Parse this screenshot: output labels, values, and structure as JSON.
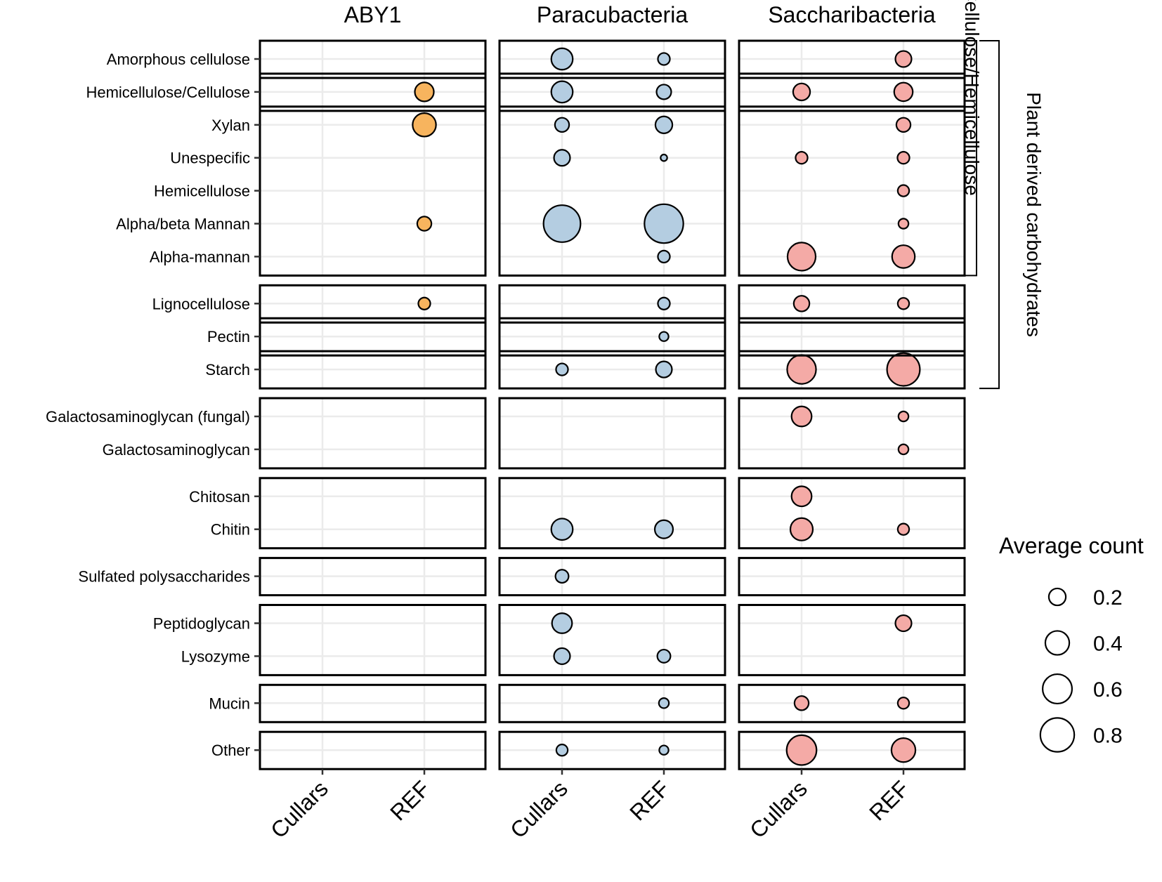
{
  "chart_data": {
    "type": "bubble",
    "facets": [
      "ABY1",
      "Paracubacteria",
      "Saccharibacteria"
    ],
    "x_categories": [
      "Cullars",
      "REF"
    ],
    "rows": [
      "Amorphous cellulose",
      "Hemicellulose/Cellulose",
      "Xylan",
      "Unespecific",
      "Hemicellulose",
      "Alpha/beta Mannan",
      "Alpha-mannan",
      "Lignocellulose",
      "Pectin",
      "Starch",
      "Galactosaminoglycan (fungal)",
      "Galactosaminoglycan",
      "Chitosan",
      "Chitin",
      "Sulfated polysaccharides",
      "Peptidoglycan",
      "Lysozyme",
      "Mucin",
      "Other"
    ],
    "row_groups": [
      [
        "Amorphous cellulose"
      ],
      [
        "Hemicellulose/Cellulose"
      ],
      [
        "Xylan",
        "Unespecific",
        "Hemicellulose",
        "Alpha/beta Mannan",
        "Alpha-mannan"
      ],
      [
        "Lignocellulose"
      ],
      [
        "Pectin"
      ],
      [
        "Starch"
      ],
      [
        "Galactosaminoglycan (fungal)",
        "Galactosaminoglycan"
      ],
      [
        "Chitosan",
        "Chitin"
      ],
      [
        "Sulfated polysaccharides"
      ],
      [
        "Peptidoglycan",
        "Lysozyme"
      ],
      [
        "Mucin"
      ],
      [
        "Other"
      ]
    ],
    "section_gaps_after": [
      7,
      10,
      12,
      14,
      15,
      17,
      18
    ],
    "brackets": [
      {
        "label": "Cellulose/Hemicellulose",
        "from": 0,
        "to": 6
      },
      {
        "label": "Plant derived carbohydrates",
        "from": 0,
        "to": 9
      }
    ],
    "colors": {
      "ABY1": "#F7B45E",
      "Paracubacteria": "#B4CDE1",
      "Saccharibacteria": "#F4AAA6"
    },
    "points": [
      {
        "facet": "ABY1",
        "x": "REF",
        "y": "Hemicellulose/Cellulose",
        "value": 0.25
      },
      {
        "facet": "ABY1",
        "x": "REF",
        "y": "Xylan",
        "value": 0.38
      },
      {
        "facet": "ABY1",
        "x": "REF",
        "y": "Alpha/beta Mannan",
        "value": 0.14
      },
      {
        "facet": "ABY1",
        "x": "REF",
        "y": "Lignocellulose",
        "value": 0.1
      },
      {
        "facet": "Paracubacteria",
        "x": "Cullars",
        "y": "Amorphous cellulose",
        "value": 0.32
      },
      {
        "facet": "Paracubacteria",
        "x": "REF",
        "y": "Amorphous cellulose",
        "value": 0.1
      },
      {
        "facet": "Paracubacteria",
        "x": "Cullars",
        "y": "Hemicellulose/Cellulose",
        "value": 0.32
      },
      {
        "facet": "Paracubacteria",
        "x": "REF",
        "y": "Hemicellulose/Cellulose",
        "value": 0.15
      },
      {
        "facet": "Paracubacteria",
        "x": "Cullars",
        "y": "Xylan",
        "value": 0.14
      },
      {
        "facet": "Paracubacteria",
        "x": "REF",
        "y": "Xylan",
        "value": 0.2
      },
      {
        "facet": "Paracubacteria",
        "x": "Cullars",
        "y": "Unespecific",
        "value": 0.18
      },
      {
        "facet": "Paracubacteria",
        "x": "REF",
        "y": "Unespecific",
        "value": 0.03
      },
      {
        "facet": "Paracubacteria",
        "x": "Cullars",
        "y": "Alpha/beta Mannan",
        "value": 0.95
      },
      {
        "facet": "Paracubacteria",
        "x": "REF",
        "y": "Alpha/beta Mannan",
        "value": 1.05
      },
      {
        "facet": "Paracubacteria",
        "x": "REF",
        "y": "Alpha-mannan",
        "value": 0.1
      },
      {
        "facet": "Paracubacteria",
        "x": "REF",
        "y": "Lignocellulose",
        "value": 0.1
      },
      {
        "facet": "Paracubacteria",
        "x": "REF",
        "y": "Pectin",
        "value": 0.06
      },
      {
        "facet": "Paracubacteria",
        "x": "Cullars",
        "y": "Starch",
        "value": 0.1
      },
      {
        "facet": "Paracubacteria",
        "x": "REF",
        "y": "Starch",
        "value": 0.18
      },
      {
        "facet": "Paracubacteria",
        "x": "Cullars",
        "y": "Chitin",
        "value": 0.32
      },
      {
        "facet": "Paracubacteria",
        "x": "REF",
        "y": "Chitin",
        "value": 0.23
      },
      {
        "facet": "Paracubacteria",
        "x": "Cullars",
        "y": "Sulfated polysaccharides",
        "value": 0.12
      },
      {
        "facet": "Paracubacteria",
        "x": "Cullars",
        "y": "Peptidoglycan",
        "value": 0.28
      },
      {
        "facet": "Paracubacteria",
        "x": "Cullars",
        "y": "Lysozyme",
        "value": 0.18
      },
      {
        "facet": "Paracubacteria",
        "x": "REF",
        "y": "Lysozyme",
        "value": 0.12
      },
      {
        "facet": "Paracubacteria",
        "x": "REF",
        "y": "Mucin",
        "value": 0.07
      },
      {
        "facet": "Paracubacteria",
        "x": "Cullars",
        "y": "Other",
        "value": 0.09
      },
      {
        "facet": "Paracubacteria",
        "x": "REF",
        "y": "Other",
        "value": 0.06
      },
      {
        "facet": "Saccharibacteria",
        "x": "REF",
        "y": "Amorphous cellulose",
        "value": 0.18
      },
      {
        "facet": "Saccharibacteria",
        "x": "Cullars",
        "y": "Hemicellulose/Cellulose",
        "value": 0.2
      },
      {
        "facet": "Saccharibacteria",
        "x": "REF",
        "y": "Hemicellulose/Cellulose",
        "value": 0.24
      },
      {
        "facet": "Saccharibacteria",
        "x": "REF",
        "y": "Xylan",
        "value": 0.14
      },
      {
        "facet": "Saccharibacteria",
        "x": "Cullars",
        "y": "Unespecific",
        "value": 0.1
      },
      {
        "facet": "Saccharibacteria",
        "x": "REF",
        "y": "Unespecific",
        "value": 0.1
      },
      {
        "facet": "Saccharibacteria",
        "x": "REF",
        "y": "Hemicellulose",
        "value": 0.09
      },
      {
        "facet": "Saccharibacteria",
        "x": "REF",
        "y": "Alpha/beta Mannan",
        "value": 0.07
      },
      {
        "facet": "Saccharibacteria",
        "x": "Cullars",
        "y": "Alpha-mannan",
        "value": 0.55
      },
      {
        "facet": "Saccharibacteria",
        "x": "REF",
        "y": "Alpha-mannan",
        "value": 0.36
      },
      {
        "facet": "Saccharibacteria",
        "x": "Cullars",
        "y": "Lignocellulose",
        "value": 0.17
      },
      {
        "facet": "Saccharibacteria",
        "x": "REF",
        "y": "Lignocellulose",
        "value": 0.09
      },
      {
        "facet": "Saccharibacteria",
        "x": "Cullars",
        "y": "Starch",
        "value": 0.58
      },
      {
        "facet": "Saccharibacteria",
        "x": "REF",
        "y": "Starch",
        "value": 0.75
      },
      {
        "facet": "Saccharibacteria",
        "x": "Cullars",
        "y": "Galactosaminoglycan (fungal)",
        "value": 0.28
      },
      {
        "facet": "Saccharibacteria",
        "x": "REF",
        "y": "Galactosaminoglycan (fungal)",
        "value": 0.07
      },
      {
        "facet": "Saccharibacteria",
        "x": "REF",
        "y": "Galactosaminoglycan",
        "value": 0.07
      },
      {
        "facet": "Saccharibacteria",
        "x": "Cullars",
        "y": "Chitosan",
        "value": 0.28
      },
      {
        "facet": "Saccharibacteria",
        "x": "Cullars",
        "y": "Chitin",
        "value": 0.35
      },
      {
        "facet": "Saccharibacteria",
        "x": "REF",
        "y": "Chitin",
        "value": 0.09
      },
      {
        "facet": "Saccharibacteria",
        "x": "REF",
        "y": "Peptidoglycan",
        "value": 0.18
      },
      {
        "facet": "Saccharibacteria",
        "x": "Cullars",
        "y": "Mucin",
        "value": 0.14
      },
      {
        "facet": "Saccharibacteria",
        "x": "REF",
        "y": "Mucin",
        "value": 0.09
      },
      {
        "facet": "Saccharibacteria",
        "x": "Cullars",
        "y": "Other",
        "value": 0.62
      },
      {
        "facet": "Saccharibacteria",
        "x": "REF",
        "y": "Other",
        "value": 0.4
      }
    ],
    "legend": {
      "title": "Average count",
      "values": [
        0.2,
        0.4,
        0.6,
        0.8
      ],
      "labels": [
        "0.2",
        "0.4",
        "0.6",
        "0.8"
      ],
      "position": "right"
    }
  }
}
